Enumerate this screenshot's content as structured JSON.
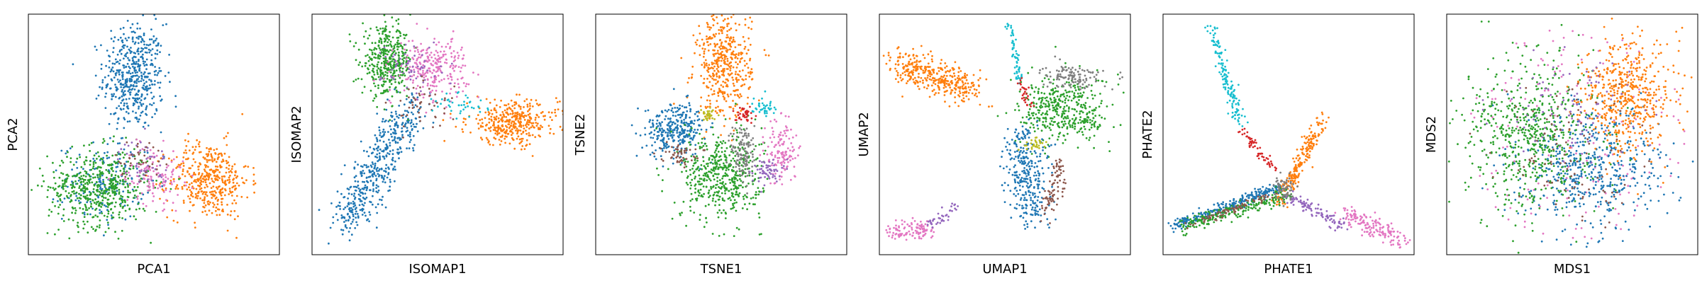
{
  "figure": {
    "panels": [
      "PCA",
      "ISOMAP",
      "TSNE",
      "UMAP",
      "PHATE",
      "MDS"
    ]
  },
  "colors": [
    "#1f77b4",
    "#ff7f0e",
    "#2ca02c",
    "#d62728",
    "#9467bd",
    "#8c564b",
    "#e377c2",
    "#7f7f7f",
    "#bcbd22",
    "#17becf"
  ],
  "chart_data": [
    {
      "type": "scatter",
      "title": "",
      "xlabel": "PCA1",
      "ylabel": "PCA2",
      "xticks": [],
      "yticks": [],
      "grid": false,
      "legend": "none",
      "series": [
        {
          "color": "#1f77b4",
          "clusters": [
            {
              "cx": 0.42,
              "cy": 0.74,
              "sx": 0.06,
              "sy": 0.11,
              "n": 500
            },
            {
              "cx": 0.3,
              "cy": 0.3,
              "sx": 0.08,
              "sy": 0.08,
              "n": 180
            }
          ]
        },
        {
          "color": "#ff7f0e",
          "clusters": [
            {
              "cx": 0.72,
              "cy": 0.31,
              "sx": 0.08,
              "sy": 0.08,
              "n": 420
            }
          ]
        },
        {
          "color": "#2ca02c",
          "clusters": [
            {
              "cx": 0.28,
              "cy": 0.28,
              "sx": 0.1,
              "sy": 0.08,
              "n": 520
            }
          ]
        },
        {
          "color": "#e377c2",
          "clusters": [
            {
              "cx": 0.5,
              "cy": 0.33,
              "sx": 0.06,
              "sy": 0.06,
              "n": 120
            }
          ]
        },
        {
          "color": "#9467bd",
          "clusters": [
            {
              "cx": 0.46,
              "cy": 0.38,
              "sx": 0.05,
              "sy": 0.05,
              "n": 50
            }
          ]
        },
        {
          "color": "#8c564b",
          "clusters": [
            {
              "cx": 0.44,
              "cy": 0.4,
              "sx": 0.05,
              "sy": 0.04,
              "n": 40
            }
          ]
        }
      ]
    },
    {
      "type": "scatter",
      "title": "",
      "xlabel": "ISOMAP1",
      "ylabel": "ISOMAP2",
      "xticks": [],
      "yticks": [],
      "grid": false,
      "legend": "none",
      "series": [
        {
          "color": "#1f77b4",
          "paths": [
            {
              "from": [
                0.12,
                0.12
              ],
              "to": [
                0.4,
                0.62
              ],
              "spread": 0.04,
              "n": 480
            }
          ]
        },
        {
          "color": "#ff7f0e",
          "clusters": [
            {
              "cx": 0.8,
              "cy": 0.55,
              "sx": 0.09,
              "sy": 0.045,
              "n": 380
            }
          ]
        },
        {
          "color": "#2ca02c",
          "clusters": [
            {
              "cx": 0.3,
              "cy": 0.8,
              "sx": 0.05,
              "sy": 0.07,
              "n": 400
            }
          ]
        },
        {
          "color": "#e377c2",
          "clusters": [
            {
              "cx": 0.48,
              "cy": 0.78,
              "sx": 0.07,
              "sy": 0.06,
              "n": 260
            }
          ]
        },
        {
          "color": "#9467bd",
          "clusters": [
            {
              "cx": 0.4,
              "cy": 0.78,
              "sx": 0.06,
              "sy": 0.06,
              "n": 60
            }
          ]
        },
        {
          "color": "#8c564b",
          "clusters": [
            {
              "cx": 0.44,
              "cy": 0.62,
              "sx": 0.06,
              "sy": 0.05,
              "n": 50
            }
          ]
        },
        {
          "color": "#17becf",
          "clusters": [
            {
              "cx": 0.6,
              "cy": 0.62,
              "sx": 0.06,
              "sy": 0.03,
              "n": 40
            }
          ]
        }
      ]
    },
    {
      "type": "scatter",
      "title": "",
      "xlabel": "TSNE1",
      "ylabel": "TSNE2",
      "xticks": [],
      "yticks": [],
      "grid": false,
      "legend": "none",
      "series": [
        {
          "color": "#ff7f0e",
          "clusters": [
            {
              "cx": 0.51,
              "cy": 0.79,
              "sx": 0.055,
              "sy": 0.11,
              "n": 450
            }
          ]
        },
        {
          "color": "#1f77b4",
          "clusters": [
            {
              "cx": 0.32,
              "cy": 0.52,
              "sx": 0.06,
              "sy": 0.055,
              "n": 320
            }
          ]
        },
        {
          "color": "#2ca02c",
          "clusters": [
            {
              "cx": 0.5,
              "cy": 0.33,
              "sx": 0.08,
              "sy": 0.09,
              "n": 500
            }
          ]
        },
        {
          "color": "#7f7f7f",
          "clusters": [
            {
              "cx": 0.59,
              "cy": 0.42,
              "sx": 0.025,
              "sy": 0.07,
              "n": 120
            }
          ]
        },
        {
          "color": "#e377c2",
          "clusters": [
            {
              "cx": 0.74,
              "cy": 0.43,
              "sx": 0.03,
              "sy": 0.07,
              "n": 130
            }
          ]
        },
        {
          "color": "#9467bd",
          "clusters": [
            {
              "cx": 0.68,
              "cy": 0.35,
              "sx": 0.03,
              "sy": 0.025,
              "n": 60
            }
          ]
        },
        {
          "color": "#8c564b",
          "clusters": [
            {
              "cx": 0.33,
              "cy": 0.42,
              "sx": 0.035,
              "sy": 0.02,
              "n": 50
            }
          ]
        },
        {
          "color": "#d62728",
          "clusters": [
            {
              "cx": 0.59,
              "cy": 0.58,
              "sx": 0.02,
              "sy": 0.015,
              "n": 40
            }
          ]
        },
        {
          "color": "#17becf",
          "clusters": [
            {
              "cx": 0.67,
              "cy": 0.62,
              "sx": 0.025,
              "sy": 0.02,
              "n": 40
            }
          ]
        },
        {
          "color": "#bcbd22",
          "clusters": [
            {
              "cx": 0.45,
              "cy": 0.58,
              "sx": 0.015,
              "sy": 0.015,
              "n": 30
            }
          ]
        }
      ]
    },
    {
      "type": "scatter",
      "title": "",
      "xlabel": "UMAP1",
      "ylabel": "UMAP2",
      "xticks": [],
      "yticks": [],
      "grid": false,
      "legend": "none",
      "series": [
        {
          "color": "#ff7f0e",
          "paths": [
            {
              "from": [
                0.08,
                0.8
              ],
              "to": [
                0.38,
                0.68
              ],
              "spread": 0.035,
              "n": 380
            }
          ]
        },
        {
          "color": "#2ca02c",
          "clusters": [
            {
              "cx": 0.74,
              "cy": 0.6,
              "sx": 0.09,
              "sy": 0.07,
              "n": 420
            }
          ]
        },
        {
          "color": "#7f7f7f",
          "clusters": [
            {
              "cx": 0.77,
              "cy": 0.74,
              "sx": 0.06,
              "sy": 0.025,
              "n": 120
            }
          ]
        },
        {
          "color": "#1f77b4",
          "paths": [
            {
              "from": [
                0.58,
                0.5
              ],
              "to": [
                0.6,
                0.15
              ],
              "spread": 0.04,
              "n": 320
            }
          ]
        },
        {
          "color": "#8c564b",
          "paths": [
            {
              "from": [
                0.72,
                0.4
              ],
              "to": [
                0.68,
                0.18
              ],
              "spread": 0.02,
              "n": 80
            }
          ]
        },
        {
          "color": "#17becf",
          "paths": [
            {
              "from": [
                0.52,
                0.97
              ],
              "to": [
                0.56,
                0.72
              ],
              "spread": 0.008,
              "n": 60
            }
          ]
        },
        {
          "color": "#d62728",
          "paths": [
            {
              "from": [
                0.56,
                0.72
              ],
              "to": [
                0.6,
                0.62
              ],
              "spread": 0.01,
              "n": 30
            }
          ]
        },
        {
          "color": "#bcbd22",
          "clusters": [
            {
              "cx": 0.62,
              "cy": 0.46,
              "sx": 0.02,
              "sy": 0.015,
              "n": 30
            }
          ]
        },
        {
          "color": "#e377c2",
          "paths": [
            {
              "from": [
                0.05,
                0.1
              ],
              "to": [
                0.2,
                0.1
              ],
              "spread": 0.02,
              "n": 110
            }
          ]
        },
        {
          "color": "#9467bd",
          "paths": [
            {
              "from": [
                0.2,
                0.12
              ],
              "to": [
                0.3,
                0.2
              ],
              "spread": 0.012,
              "n": 40
            }
          ]
        }
      ]
    },
    {
      "type": "scatter",
      "title": "",
      "xlabel": "PHATE1",
      "ylabel": "PHATE2",
      "xticks": [],
      "yticks": [],
      "grid": false,
      "legend": "none",
      "series": [
        {
          "color": "#17becf",
          "paths": [
            {
              "from": [
                0.19,
                0.96
              ],
              "to": [
                0.31,
                0.54
              ],
              "spread": 0.012,
              "n": 140
            }
          ]
        },
        {
          "color": "#d62728",
          "paths": [
            {
              "from": [
                0.31,
                0.52
              ],
              "to": [
                0.44,
                0.36
              ],
              "spread": 0.01,
              "n": 60
            }
          ]
        },
        {
          "color": "#ff7f0e",
          "paths": [
            {
              "from": [
                0.46,
                0.22
              ],
              "to": [
                0.64,
                0.57
              ],
              "spread": 0.015,
              "n": 220
            }
          ]
        },
        {
          "color": "#1f77b4",
          "paths": [
            {
              "from": [
                0.04,
                0.12
              ],
              "to": [
                0.46,
                0.28
              ],
              "spread": 0.012,
              "n": 260
            }
          ]
        },
        {
          "color": "#2ca02c",
          "paths": [
            {
              "from": [
                0.08,
                0.12
              ],
              "to": [
                0.5,
                0.25
              ],
              "spread": 0.015,
              "n": 220
            }
          ]
        },
        {
          "color": "#8c564b",
          "paths": [
            {
              "from": [
                0.1,
                0.12
              ],
              "to": [
                0.46,
                0.26
              ],
              "spread": 0.008,
              "n": 80
            }
          ]
        },
        {
          "color": "#9467bd",
          "paths": [
            {
              "from": [
                0.5,
                0.24
              ],
              "to": [
                0.72,
                0.12
              ],
              "spread": 0.012,
              "n": 100
            }
          ]
        },
        {
          "color": "#e377c2",
          "paths": [
            {
              "from": [
                0.72,
                0.18
              ],
              "to": [
                0.96,
                0.05
              ],
              "spread": 0.02,
              "n": 160
            }
          ]
        },
        {
          "color": "#7f7f7f",
          "clusters": [
            {
              "cx": 0.48,
              "cy": 0.27,
              "sx": 0.02,
              "sy": 0.03,
              "n": 60
            }
          ]
        }
      ]
    },
    {
      "type": "scatter",
      "title": "",
      "xlabel": "MDS1",
      "ylabel": "MDS2",
      "xticks": [],
      "yticks": [],
      "grid": false,
      "legend": "none",
      "series": [
        {
          "color": "#e377c2",
          "disk": {
            "cx": 0.5,
            "cy": 0.5,
            "r": 0.45,
            "n": 160
          }
        },
        {
          "color": "#1f77b4",
          "clusters": [
            {
              "cx": 0.58,
              "cy": 0.36,
              "sx": 0.14,
              "sy": 0.13,
              "n": 520
            }
          ]
        },
        {
          "color": "#2ca02c",
          "clusters": [
            {
              "cx": 0.34,
              "cy": 0.5,
              "sx": 0.13,
              "sy": 0.16,
              "n": 620
            }
          ]
        },
        {
          "color": "#ff7f0e",
          "clusters": [
            {
              "cx": 0.72,
              "cy": 0.66,
              "sx": 0.09,
              "sy": 0.12,
              "n": 520
            }
          ]
        },
        {
          "color": "#9467bd",
          "clusters": [
            {
              "cx": 0.48,
              "cy": 0.62,
              "sx": 0.14,
              "sy": 0.12,
              "n": 100
            }
          ]
        },
        {
          "color": "#8c564b",
          "clusters": [
            {
              "cx": 0.5,
              "cy": 0.4,
              "sx": 0.14,
              "sy": 0.14,
              "n": 100
            }
          ]
        }
      ]
    }
  ]
}
